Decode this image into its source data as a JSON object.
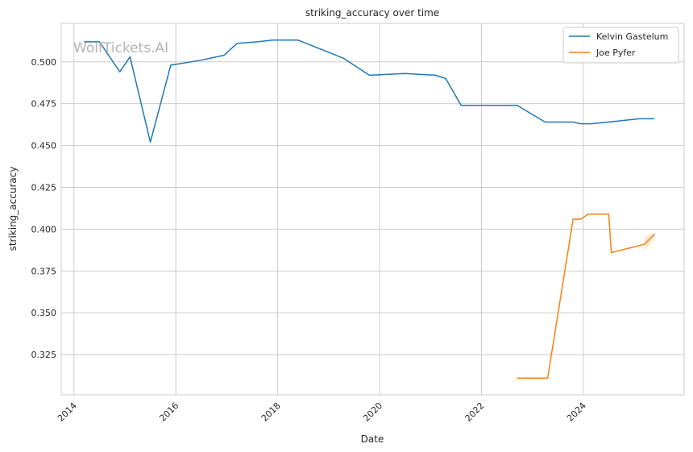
{
  "chart_data": {
    "type": "line",
    "title": "striking_accuracy over time",
    "xlabel": "Date",
    "ylabel": "striking_accuracy",
    "watermark": "WolfTickets.AI",
    "xlim": [
      2013.75,
      2025.98
    ],
    "ylim": [
      0.301,
      0.523
    ],
    "x_ticks": [
      "2014",
      "2016",
      "2018",
      "2020",
      "2022",
      "2024"
    ],
    "y_ticks": [
      "0.325",
      "0.350",
      "0.375",
      "0.400",
      "0.425",
      "0.450",
      "0.475",
      "0.500"
    ],
    "grid": true,
    "legend_position": "top-right",
    "series": [
      {
        "name": "Kelvin Gastelum",
        "color": "#1f77b4",
        "points": [
          [
            2014.2,
            0.512
          ],
          [
            2014.5,
            0.512
          ],
          [
            2014.9,
            0.494
          ],
          [
            2015.1,
            0.503
          ],
          [
            2015.5,
            0.452
          ],
          [
            2015.9,
            0.498
          ],
          [
            2016.5,
            0.501
          ],
          [
            2016.95,
            0.504
          ],
          [
            2017.2,
            0.511
          ],
          [
            2017.6,
            0.512
          ],
          [
            2017.9,
            0.513
          ],
          [
            2018.4,
            0.513
          ],
          [
            2019.3,
            0.502
          ],
          [
            2019.8,
            0.492
          ],
          [
            2020.5,
            0.493
          ],
          [
            2021.1,
            0.492
          ],
          [
            2021.3,
            0.49
          ],
          [
            2021.6,
            0.474
          ],
          [
            2022.7,
            0.474
          ],
          [
            2023.25,
            0.464
          ],
          [
            2023.8,
            0.464
          ],
          [
            2023.95,
            0.463
          ],
          [
            2024.15,
            0.463
          ],
          [
            2024.5,
            0.464
          ],
          [
            2025.1,
            0.466
          ],
          [
            2025.4,
            0.466
          ]
        ]
      },
      {
        "name": "Joe Pyfer",
        "color": "#ff7f0e",
        "points": [
          [
            2022.7,
            0.311
          ],
          [
            2023.3,
            0.311
          ],
          [
            2023.8,
            0.406
          ],
          [
            2023.95,
            0.406
          ],
          [
            2024.1,
            0.409
          ],
          [
            2024.5,
            0.409
          ],
          [
            2024.55,
            0.386
          ],
          [
            2025.2,
            0.391
          ],
          [
            2025.4,
            0.397
          ]
        ],
        "band": [
          [
            2025.2,
            0.387,
            0.395
          ],
          [
            2025.4,
            0.395,
            0.398
          ]
        ]
      }
    ]
  }
}
